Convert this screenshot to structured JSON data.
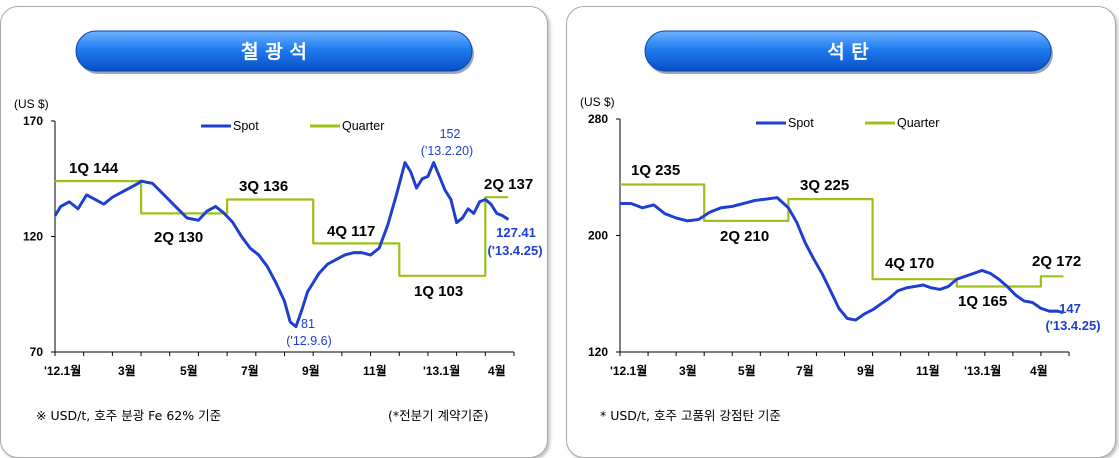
{
  "chart_data": [
    {
      "type": "line",
      "title": "철 광 석",
      "unit": "(US $)",
      "ylim": [
        70,
        170
      ],
      "yticks": [
        "170",
        "120",
        "70"
      ],
      "xticks": [
        "'12.1월",
        "3월",
        "5월",
        "7월",
        "9월",
        "11월",
        "'13.1월",
        "4월"
      ],
      "legend": [
        "Spot",
        "Quarter"
      ],
      "series": [
        {
          "name": "Spot",
          "color": "#1f3fd0",
          "x": [
            0,
            0.2,
            0.5,
            0.8,
            1.1,
            1.4,
            1.7,
            2.0,
            2.3,
            2.6,
            2.9,
            3.0,
            3.4,
            3.8,
            4.2,
            4.6,
            5.0,
            5.3,
            5.6,
            5.9,
            6.2,
            6.5,
            6.8,
            7.1,
            7.4,
            7.7,
            8.0,
            8.2,
            8.4,
            8.6,
            8.8,
            9.0,
            9.2,
            9.5,
            9.8,
            10.1,
            10.4,
            10.7,
            11.0,
            11.3,
            11.6,
            11.9,
            12.2,
            12.4,
            12.6,
            12.8,
            13.0,
            13.2,
            13.4,
            13.6,
            13.8,
            14.0,
            14.2,
            14.4,
            14.6,
            14.8,
            15.0,
            15.2,
            15.4,
            15.6,
            15.8
          ],
          "values": [
            129,
            133,
            135,
            132,
            138,
            136,
            134,
            137,
            139,
            141,
            143,
            144,
            143,
            138,
            133,
            128,
            127,
            131,
            133,
            130,
            126,
            120,
            115,
            112,
            107,
            100,
            92,
            83,
            81,
            88,
            96,
            100,
            104,
            108,
            110,
            112,
            113,
            113,
            112,
            115,
            125,
            138,
            152,
            148,
            141,
            145,
            146,
            152,
            146,
            140,
            136,
            126,
            128,
            132,
            130,
            135,
            136,
            134,
            130,
            129,
            127.41
          ]
        },
        {
          "name": "Quarter",
          "color": "#9cc21a",
          "x": [
            0,
            3,
            3,
            6,
            6,
            9,
            9,
            12,
            12,
            15,
            15,
            15.8
          ],
          "values": [
            144,
            144,
            130,
            130,
            136,
            136,
            117,
            117,
            103,
            103,
            137,
            137
          ]
        }
      ],
      "annotations": [
        {
          "text": "1Q 144",
          "color": "black"
        },
        {
          "text": "2Q 130",
          "color": "black"
        },
        {
          "text": "3Q 136",
          "color": "black"
        },
        {
          "text": "4Q 117",
          "color": "black"
        },
        {
          "text": "1Q 103",
          "color": "black"
        },
        {
          "text": "2Q 137",
          "color": "black"
        },
        {
          "text": "152",
          "color": "blue"
        },
        {
          "text": "('13.2.20)",
          "color": "blue"
        },
        {
          "text": "81",
          "color": "blue"
        },
        {
          "text": "('12.9.6)",
          "color": "blue"
        },
        {
          "text": "127.41",
          "color": "blue"
        },
        {
          "text": "('13.4.25)",
          "color": "blue"
        }
      ],
      "footnote_left": "※ USD/t, 호주 분광 Fe 62% 기준",
      "footnote_right": "(*전분기 계약기준)"
    },
    {
      "type": "line",
      "title": "석 탄",
      "unit": "(US $)",
      "ylim": [
        120,
        280
      ],
      "yticks": [
        "280",
        "200",
        "120"
      ],
      "xticks": [
        "'12.1월",
        "3월",
        "5월",
        "7월",
        "9월",
        "11월",
        "'13.1월",
        "4월"
      ],
      "legend": [
        "Spot",
        "Quarter"
      ],
      "series": [
        {
          "name": "Spot",
          "color": "#1f3fd0",
          "x": [
            0,
            0.4,
            0.8,
            1.2,
            1.6,
            2.0,
            2.4,
            2.8,
            3.2,
            3.6,
            4.0,
            4.4,
            4.8,
            5.2,
            5.6,
            6.0,
            6.3,
            6.6,
            6.9,
            7.2,
            7.5,
            7.8,
            8.1,
            8.4,
            8.7,
            9.0,
            9.3,
            9.6,
            9.9,
            10.2,
            10.5,
            10.8,
            11.1,
            11.4,
            11.7,
            12.0,
            12.3,
            12.6,
            12.9,
            13.2,
            13.5,
            13.8,
            14.1,
            14.4,
            14.7,
            15.0,
            15.3,
            15.6,
            15.8
          ],
          "values": [
            222,
            222,
            219,
            221,
            215,
            212,
            210,
            211,
            216,
            219,
            220,
            222,
            224,
            225,
            226,
            219,
            209,
            195,
            184,
            174,
            162,
            150,
            143,
            142,
            146,
            149,
            153,
            157,
            162,
            164,
            165,
            166,
            164,
            163,
            165,
            170,
            172,
            174,
            176,
            174,
            170,
            165,
            159,
            155,
            154,
            150,
            148,
            148,
            147
          ]
        },
        {
          "name": "Quarter",
          "color": "#9cc21a",
          "x": [
            0,
            3,
            3,
            6,
            6,
            9,
            9,
            12,
            12,
            15,
            15,
            15.8
          ],
          "values": [
            235,
            235,
            210,
            210,
            225,
            225,
            170,
            170,
            165,
            165,
            172,
            172
          ]
        }
      ],
      "annotations": [
        {
          "text": "1Q 235",
          "color": "black"
        },
        {
          "text": "2Q 210",
          "color": "black"
        },
        {
          "text": "3Q 225",
          "color": "black"
        },
        {
          "text": "4Q 170",
          "color": "black"
        },
        {
          "text": "1Q 165",
          "color": "black"
        },
        {
          "text": "2Q 172",
          "color": "black"
        },
        {
          "text": "147",
          "color": "blue"
        },
        {
          "text": "('13.4.25)",
          "color": "blue"
        }
      ],
      "footnote_left": "* USD/t, 호주 고품위 강점탄 기준",
      "footnote_right": ""
    }
  ]
}
